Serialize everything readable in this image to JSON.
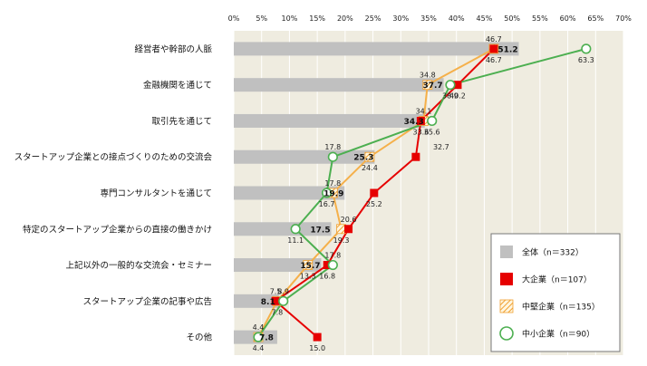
{
  "chart_data": {
    "type": "bar",
    "orientation": "horizontal",
    "title": "",
    "xlabel": "",
    "ylabel": "",
    "xlim": [
      0,
      70
    ],
    "tick_labels": [
      "0%",
      "5%",
      "10%",
      "15%",
      "20%",
      "25%",
      "30%",
      "35%",
      "40%",
      "45%",
      "50%",
      "55%",
      "60%",
      "65%",
      "70%"
    ],
    "grid": true,
    "legend_position": "bottom-right",
    "categories": [
      "経営者や幹部の人脈",
      "金融機関を通じて",
      "取引先を通じて",
      "スタートアップ企業との接点づくりのための交流会",
      "専門コンサルタントを通じて",
      "特定のスタートアップ企業からの直接の働きかけ",
      "上記以外の一般的な交流会・セミナー",
      "スタートアップ企業の記事や広告",
      "その他"
    ],
    "series": [
      {
        "name": "全体（n＝332）",
        "kind": "bar",
        "color": "#c0c0c0",
        "values": [
          51.2,
          37.7,
          34.3,
          25.3,
          19.9,
          17.5,
          15.7,
          8.1,
          7.8
        ]
      },
      {
        "name": "大企業（n＝107）",
        "kind": "line-square",
        "color": "#e60000",
        "values": [
          46.7,
          40.2,
          33.6,
          32.7,
          25.2,
          20.6,
          16.8,
          7.5,
          15.0
        ]
      },
      {
        "name": "中堅企業（n＝135）",
        "kind": "line-hatched",
        "color": "#f5b04a",
        "values": [
          46.7,
          34.8,
          34.1,
          24.4,
          17.8,
          19.3,
          13.3,
          7.8,
          4.4
        ]
      },
      {
        "name": "中小企業（n＝90）",
        "kind": "line-circle",
        "color": "#4caf50",
        "values": [
          63.3,
          38.9,
          35.6,
          17.8,
          16.7,
          11.1,
          17.8,
          8.9,
          4.4
        ]
      }
    ]
  }
}
